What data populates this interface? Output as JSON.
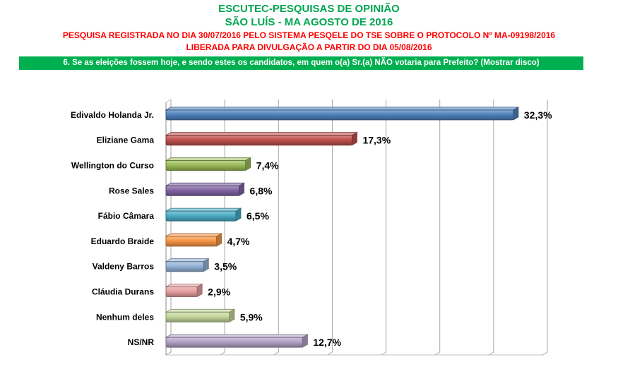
{
  "header": {
    "title": "ESCUTEC-PESQUISAS DE OPINIÃO",
    "subtitle": "SÃO LUÍS - MA AGOSTO DE 2016",
    "registration": "PESQUISA REGISTRADA NO DIA 30/07/2016 PELO SISTEMA PESQELE DO TSE SOBRE O PROTOCOLO Nº MA-09198/2016",
    "release": "LIBERADA PARA DIVULGAÇÃO A PARTIR DO DIA 05/08/2016",
    "question": "6. Se as eleições fossem hoje, e sendo estes os candidatos, em quem o(a) Sr.(a) NÃO votaria para Prefeito? (Mostrar disco)"
  },
  "colors": {
    "title": "#00a651",
    "registration": "#ff0000",
    "question_bg": "#00b050"
  },
  "chart_data": {
    "type": "bar",
    "orientation": "horizontal",
    "categories": [
      "Edivaldo Holanda Jr.",
      "Eliziane Gama",
      "Wellington do Curso",
      "Rose Sales",
      "Fábio Câmara",
      "Eduardo Braide",
      "Valdeny Barros",
      "Cláudia Durans",
      "Nenhum deles",
      "NS/NR"
    ],
    "values": [
      32.3,
      17.3,
      7.4,
      6.8,
      6.5,
      4.7,
      3.5,
      2.9,
      5.9,
      12.7
    ],
    "labels": [
      "32,3%",
      "17,3%",
      "7,4%",
      "6,8%",
      "6,5%",
      "4,7%",
      "3,5%",
      "2,9%",
      "5,9%",
      "12,7%"
    ],
    "colors": [
      "#4f81bd",
      "#c0504d",
      "#9bbb59",
      "#8064a2",
      "#4bacc6",
      "#f79646",
      "#95b3d7",
      "#e6a0a0",
      "#c4d79b",
      "#b3a2c7"
    ],
    "xlim": [
      0,
      35
    ],
    "grid": true,
    "legend": "none"
  }
}
